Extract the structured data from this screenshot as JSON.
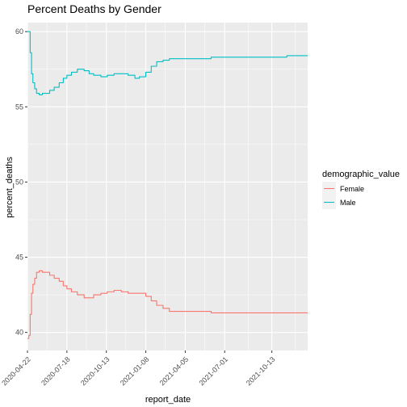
{
  "chart_data": {
    "type": "line",
    "title": "Percent Deaths by Gender",
    "xlabel": "report_date",
    "ylabel": "percent_deaths",
    "x_ticks": [
      "2020-04-22",
      "2020-07-18",
      "2020-10-13",
      "2021-01-08",
      "2021-04-05",
      "2021-07-01",
      "2021-10-13"
    ],
    "y_ticks": [
      40,
      45,
      50,
      55,
      60
    ],
    "xlim": [
      "2020-04-22",
      "2021-12-31"
    ],
    "ylim": [
      38.8,
      60.6
    ],
    "grid": true,
    "legend": {
      "title": "demographic_value",
      "placement": "right"
    },
    "series": [
      {
        "name": "Female",
        "color": "#F8766D",
        "points": [
          [
            "2020-04-22",
            39.6
          ],
          [
            "2020-04-25",
            39.8
          ],
          [
            "2020-04-28",
            41.2
          ],
          [
            "2020-05-01",
            42.6
          ],
          [
            "2020-05-04",
            43.2
          ],
          [
            "2020-05-08",
            43.6
          ],
          [
            "2020-05-12",
            44.0
          ],
          [
            "2020-05-18",
            44.1
          ],
          [
            "2020-05-25",
            44.0
          ],
          [
            "2020-06-01",
            44.0
          ],
          [
            "2020-06-10",
            43.8
          ],
          [
            "2020-06-20",
            43.6
          ],
          [
            "2020-07-01",
            43.4
          ],
          [
            "2020-07-10",
            43.1
          ],
          [
            "2020-07-18",
            42.9
          ],
          [
            "2020-07-28",
            42.7
          ],
          [
            "2020-08-10",
            42.5
          ],
          [
            "2020-08-25",
            42.3
          ],
          [
            "2020-09-05",
            42.3
          ],
          [
            "2020-09-15",
            42.5
          ],
          [
            "2020-10-01",
            42.6
          ],
          [
            "2020-10-15",
            42.7
          ],
          [
            "2020-10-30",
            42.8
          ],
          [
            "2020-11-15",
            42.7
          ],
          [
            "2020-11-30",
            42.6
          ],
          [
            "2020-12-15",
            42.6
          ],
          [
            "2020-12-25",
            42.6
          ],
          [
            "2021-01-08",
            42.4
          ],
          [
            "2021-01-20",
            42.1
          ],
          [
            "2021-02-01",
            41.8
          ],
          [
            "2021-02-15",
            41.6
          ],
          [
            "2021-03-01",
            41.4
          ],
          [
            "2021-04-05",
            41.4
          ],
          [
            "2021-05-01",
            41.4
          ],
          [
            "2021-06-01",
            41.3
          ],
          [
            "2021-07-01",
            41.3
          ],
          [
            "2021-08-01",
            41.3
          ],
          [
            "2021-09-01",
            41.3
          ],
          [
            "2021-10-13",
            41.3
          ],
          [
            "2021-11-15",
            41.3
          ],
          [
            "2021-12-31",
            41.3
          ]
        ]
      },
      {
        "name": "Male",
        "color": "#00BFC4",
        "points": [
          [
            "2020-04-22",
            60.0
          ],
          [
            "2020-04-25",
            60.0
          ],
          [
            "2020-04-28",
            58.6
          ],
          [
            "2020-05-01",
            57.2
          ],
          [
            "2020-05-04",
            56.6
          ],
          [
            "2020-05-08",
            56.2
          ],
          [
            "2020-05-12",
            55.9
          ],
          [
            "2020-05-18",
            55.8
          ],
          [
            "2020-05-25",
            55.9
          ],
          [
            "2020-06-01",
            55.9
          ],
          [
            "2020-06-10",
            56.1
          ],
          [
            "2020-06-20",
            56.3
          ],
          [
            "2020-07-01",
            56.6
          ],
          [
            "2020-07-10",
            56.9
          ],
          [
            "2020-07-18",
            57.1
          ],
          [
            "2020-07-28",
            57.3
          ],
          [
            "2020-08-10",
            57.5
          ],
          [
            "2020-08-25",
            57.4
          ],
          [
            "2020-09-05",
            57.2
          ],
          [
            "2020-09-15",
            57.1
          ],
          [
            "2020-10-01",
            57.0
          ],
          [
            "2020-10-15",
            57.1
          ],
          [
            "2020-10-30",
            57.2
          ],
          [
            "2020-11-15",
            57.2
          ],
          [
            "2020-11-30",
            57.1
          ],
          [
            "2020-12-15",
            56.9
          ],
          [
            "2020-12-25",
            57.0
          ],
          [
            "2021-01-08",
            57.3
          ],
          [
            "2021-01-20",
            57.7
          ],
          [
            "2021-02-01",
            58.0
          ],
          [
            "2021-02-15",
            58.1
          ],
          [
            "2021-03-01",
            58.2
          ],
          [
            "2021-04-05",
            58.2
          ],
          [
            "2021-05-01",
            58.2
          ],
          [
            "2021-06-01",
            58.3
          ],
          [
            "2021-07-01",
            58.3
          ],
          [
            "2021-08-01",
            58.3
          ],
          [
            "2021-09-01",
            58.3
          ],
          [
            "2021-10-13",
            58.3
          ],
          [
            "2021-11-15",
            58.4
          ],
          [
            "2021-12-31",
            58.4
          ]
        ]
      }
    ]
  },
  "style": {
    "panel_background": "#EBEBEB",
    "grid_color": "#FFFFFF",
    "tick_color": "#333333"
  }
}
